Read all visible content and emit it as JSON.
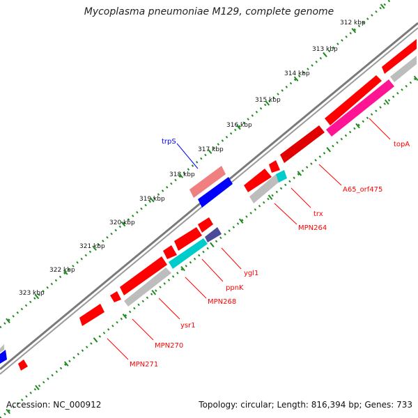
{
  "header": {
    "title": "Mycoplasma pneumoniae M129, complete genome"
  },
  "footer": {
    "accession": "Accession: NC_000912",
    "summary": "Topology: circular; Length: 816,394 bp; Genes: 733"
  },
  "scale": {
    "ticks": [
      "312 kbp",
      "313 kbp",
      "314 kbp",
      "315 kbp",
      "316 kbp",
      "317 kbp",
      "318 kbp",
      "319 kbp",
      "320 kbp",
      "321 kbp",
      "322 kbp",
      "323 kbp"
    ]
  },
  "genes": [
    {
      "label": "trpS",
      "color": "#0000ff"
    },
    {
      "label": "topA",
      "color": "#ff0000"
    },
    {
      "label": "A65_orf475",
      "color": "#ff0000"
    },
    {
      "label": "trx",
      "color": "#ff0000"
    },
    {
      "label": "MPN264",
      "color": "#ff0000"
    },
    {
      "label": "ygl1",
      "color": "#ff0000"
    },
    {
      "label": "ppnK",
      "color": "#ff0000"
    },
    {
      "label": "MPN268",
      "color": "#ff0000"
    },
    {
      "label": "ysr1",
      "color": "#ff0000"
    },
    {
      "label": "MPN270",
      "color": "#ff0000"
    },
    {
      "label": "MPN271",
      "color": "#ff0000"
    }
  ],
  "colors": {
    "backbone": "#8a8a8a",
    "tick_dots": "#1f8a1f",
    "cds_forward": "#ff0000",
    "cds_blue": "#0000ff",
    "gene_pink": "#ff1493",
    "gene_salmon": "#f08080",
    "gene_gray": "#bdbdbd",
    "gene_cyan": "#00cccc",
    "gene_navy": "#4b4b9a"
  }
}
